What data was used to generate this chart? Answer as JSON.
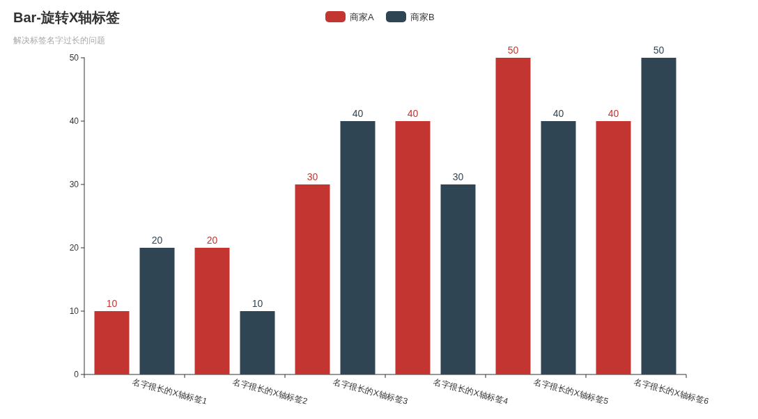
{
  "chart_data": {
    "type": "bar",
    "title": "Bar-旋转X轴标签",
    "subtitle": "解决标签名字过长的问题",
    "categories": [
      "名字很长的X轴标签1",
      "名字很长的X轴标签2",
      "名字很长的X轴标签3",
      "名字很长的X轴标签4",
      "名字很长的X轴标签5",
      "名字很长的X轴标签6"
    ],
    "series": [
      {
        "name": "商家A",
        "color": "#c23531",
        "values": [
          10,
          20,
          30,
          40,
          50,
          40
        ]
      },
      {
        "name": "商家B",
        "color": "#2f4554",
        "values": [
          20,
          10,
          40,
          30,
          40,
          50
        ]
      }
    ],
    "ylim": [
      0,
      50
    ],
    "yticks": [
      0,
      10,
      20,
      30,
      40,
      50
    ],
    "data_labels": true,
    "legend": "top",
    "grid": false
  }
}
